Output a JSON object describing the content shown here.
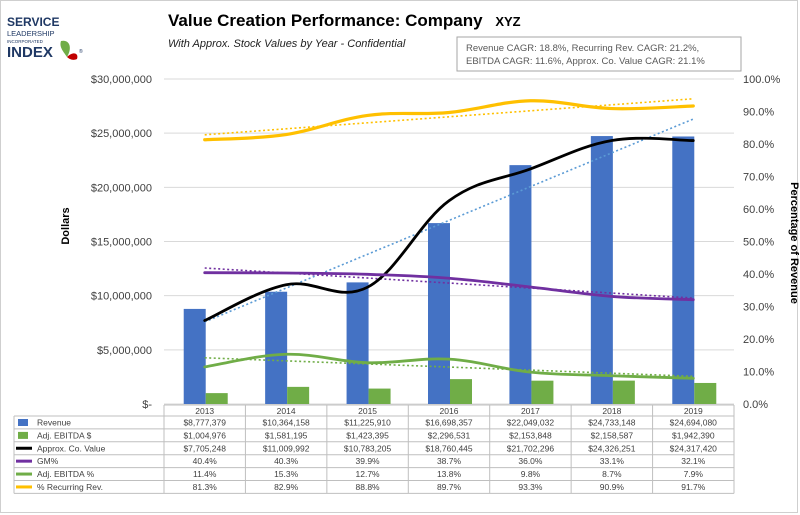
{
  "logo": {
    "line1": "SERVICE",
    "line2": "LEADERSHIP",
    "line3": "INCORPORATED",
    "line4": "INDEX",
    "mark": "®"
  },
  "chart_data": {
    "type": "bar",
    "title": "Value Creation Performance: Company",
    "title_suffix": "XYZ",
    "subtitle": "With Approx. Stock Values by Year - Confidential",
    "cagr_box": {
      "line1": "Revenue CAGR: 18.8%, Recurring Rev. CAGR: 21.2%,",
      "line2": "EBITDA CAGR: 11.6%, Approx. Co. Value CAGR: 21.1%"
    },
    "ylabel": "Dollars",
    "y2label": "Percentage of Revenue",
    "ylim": [
      0,
      30000000
    ],
    "y2lim": [
      0,
      100
    ],
    "y_ticks": [
      {
        "value": 0,
        "label": "$-"
      },
      {
        "value": 5000000,
        "label": "$5,000,000"
      },
      {
        "value": 10000000,
        "label": "$10,000,000"
      },
      {
        "value": 15000000,
        "label": "$15,000,000"
      },
      {
        "value": 20000000,
        "label": "$20,000,000"
      },
      {
        "value": 25000000,
        "label": "$25,000,000"
      },
      {
        "value": 30000000,
        "label": "$30,000,000"
      }
    ],
    "y2_ticks": [
      {
        "value": 0,
        "label": "0.0%"
      },
      {
        "value": 10,
        "label": "10.0%"
      },
      {
        "value": 20,
        "label": "20.0%"
      },
      {
        "value": 30,
        "label": "30.0%"
      },
      {
        "value": 40,
        "label": "40.0%"
      },
      {
        "value": 50,
        "label": "50.0%"
      },
      {
        "value": 60,
        "label": "60.0%"
      },
      {
        "value": 70,
        "label": "70.0%"
      },
      {
        "value": 80,
        "label": "80.0%"
      },
      {
        "value": 90,
        "label": "90.0%"
      },
      {
        "value": 100,
        "label": "100.0%"
      }
    ],
    "grid": true,
    "legend": "data-table-below",
    "categories": [
      "2013",
      "2014",
      "2015",
      "2016",
      "2017",
      "2018",
      "2019"
    ],
    "series": [
      {
        "key": "revenue",
        "name": "Revenue",
        "kind": "bar",
        "axis": "left",
        "color": "#4472c4",
        "values": [
          8777379,
          10364158,
          11225910,
          16698357,
          22049032,
          24733148,
          24694080
        ],
        "labels": [
          "$8,777,379",
          "$10,364,158",
          "$11,225,910",
          "$16,698,357",
          "$22,049,032",
          "$24,733,148",
          "$24,694,080"
        ]
      },
      {
        "key": "ebitda",
        "name": "Adj. EBITDA $",
        "kind": "bar",
        "axis": "left",
        "color": "#70ad47",
        "values": [
          1004976,
          1581195,
          1423395,
          2296531,
          2153848,
          2158587,
          1942390
        ],
        "labels": [
          "$1,004,976",
          "$1,581,195",
          "$1,423,395",
          "$2,296,531",
          "$2,153,848",
          "$2,158,587",
          "$1,942,390"
        ]
      },
      {
        "key": "value",
        "name": "Approx. Co. Value",
        "kind": "line",
        "axis": "left",
        "color": "#000000",
        "trend_color": "#5b9bd5",
        "values": [
          7705248,
          11009992,
          10783205,
          18760445,
          21702296,
          24326251,
          24317420
        ],
        "labels": [
          "$7,705,248",
          "$11,009,992",
          "$10,783,205",
          "$18,760,445",
          "$21,702,296",
          "$24,326,251",
          "$24,317,420"
        ]
      },
      {
        "key": "gm",
        "name": "GM%",
        "kind": "line",
        "axis": "right",
        "color": "#7030a0",
        "trend_color": "#7030a0",
        "values": [
          40.4,
          40.3,
          39.9,
          38.7,
          36.0,
          33.1,
          32.1
        ],
        "labels": [
          "40.4%",
          "40.3%",
          "39.9%",
          "38.7%",
          "36.0%",
          "33.1%",
          "32.1%"
        ]
      },
      {
        "key": "ebitda_pct",
        "name": "Adj. EBITDA %",
        "kind": "line",
        "axis": "right",
        "color": "#70ad47",
        "trend_color": "#70ad47",
        "values": [
          11.4,
          15.3,
          12.7,
          13.8,
          9.8,
          8.7,
          7.9
        ],
        "labels": [
          "11.4%",
          "15.3%",
          "12.7%",
          "13.8%",
          "9.8%",
          "8.7%",
          "7.9%"
        ]
      },
      {
        "key": "recurring",
        "name": "% Recurring Rev.",
        "kind": "line",
        "axis": "right",
        "color": "#ffc000",
        "trend_color": "#ffc000",
        "values": [
          81.3,
          82.9,
          88.8,
          89.7,
          93.3,
          90.9,
          91.7
        ],
        "labels": [
          "81.3%",
          "82.9%",
          "88.8%",
          "89.7%",
          "93.3%",
          "90.9%",
          "91.7%"
        ]
      }
    ]
  }
}
